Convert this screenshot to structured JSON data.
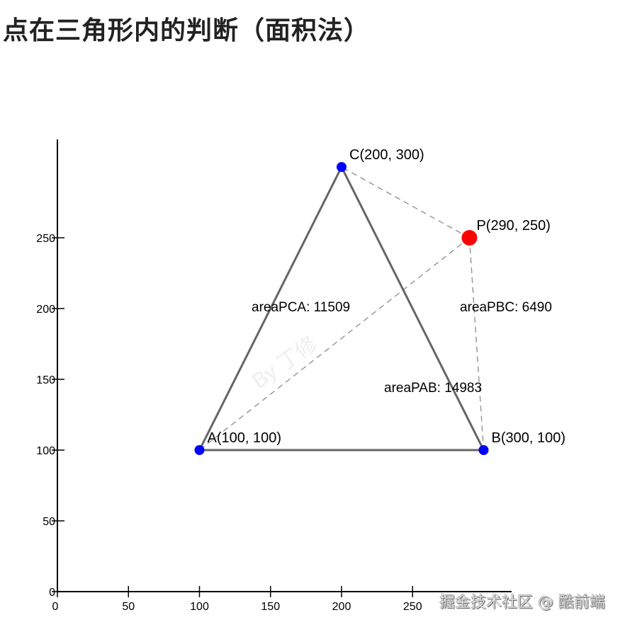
{
  "title": "点在三角形内的判断（面积法）",
  "chart_data": {
    "type": "scatter",
    "title": "点在三角形内的判断（面积法）",
    "xlim": [
      0,
      300
    ],
    "ylim": [
      0,
      300
    ],
    "x_ticks": [
      0,
      50,
      100,
      150,
      200,
      250
    ],
    "y_ticks": [
      0,
      50,
      100,
      150,
      200,
      250
    ],
    "x_tick_labels": [
      "0",
      "50",
      "100",
      "150",
      "200",
      "250"
    ],
    "y_tick_labels": [
      "0",
      "50",
      "100",
      "150",
      "200",
      "250"
    ],
    "triangle": [
      {
        "name": "A",
        "x": 100,
        "y": 100,
        "label": "A(100, 100)"
      },
      {
        "name": "B",
        "x": 300,
        "y": 100,
        "label": "B(300, 100)"
      },
      {
        "name": "C",
        "x": 200,
        "y": 300,
        "label": "C(200, 300)"
      }
    ],
    "point": {
      "name": "P",
      "x": 290,
      "y": 250,
      "label": "P(290, 250)"
    },
    "areas": [
      {
        "name": "areaPCA",
        "label": "areaPCA: 11509"
      },
      {
        "name": "areaPBC",
        "label": "areaPBC: 6490"
      },
      {
        "name": "areaPAB",
        "label": "areaPAB: 14983"
      }
    ],
    "colors": {
      "vertex": "#0000ff",
      "point": "#ff0000",
      "triangle": "#666666",
      "dashed": "#999999"
    },
    "watermark": "By 丁修"
  },
  "footer_watermark": "掘金技术社区 @ 酷前端"
}
